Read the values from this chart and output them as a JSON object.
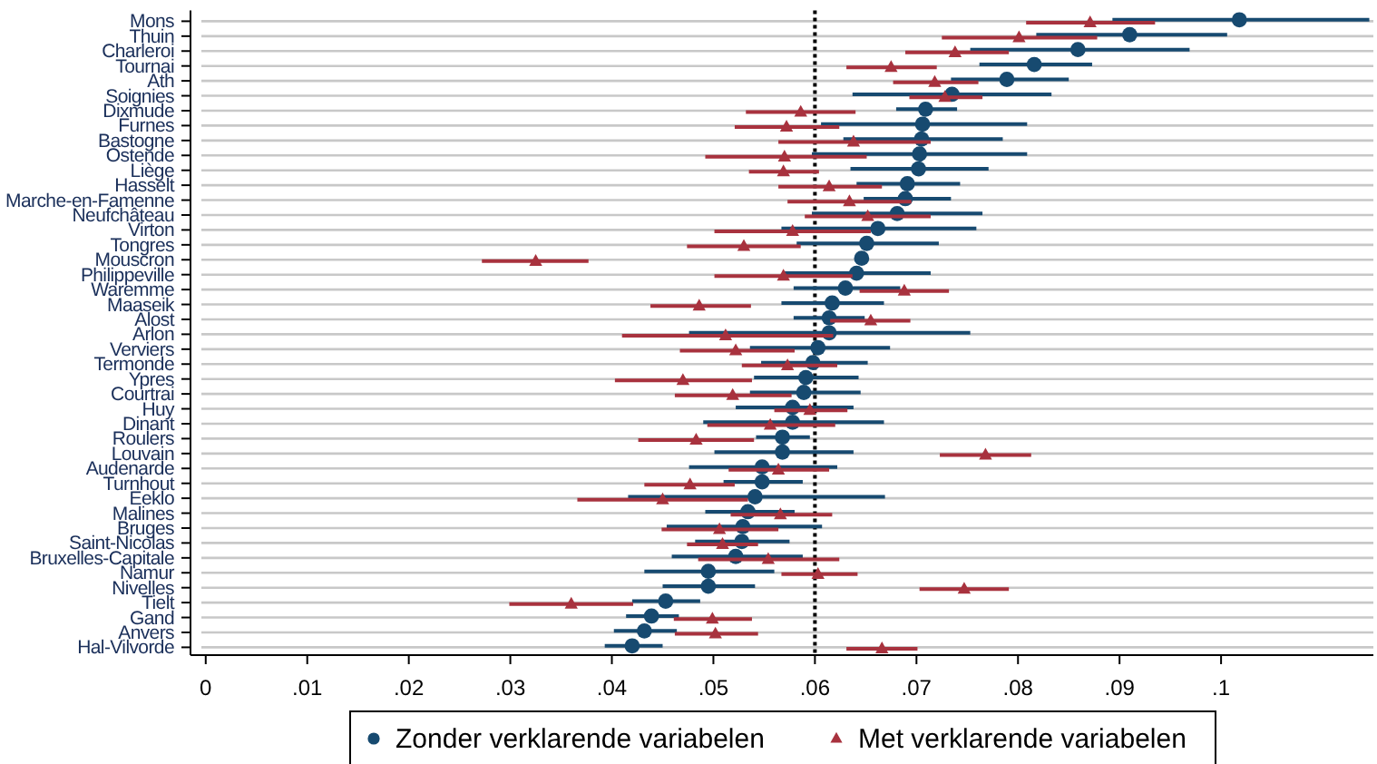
{
  "chart_data": {
    "type": "scatter",
    "orientation": "horizontal",
    "categories": [
      "Mons",
      "Thuin",
      "Charleroi",
      "Tournai",
      "Ath",
      "Soignies",
      "Dixmude",
      "Furnes",
      "Bastogne",
      "Ostende",
      "Liège",
      "Hasselt",
      "Marche-en-Famenne",
      "Neufchâteau",
      "Virton",
      "Tongres",
      "Mouscron",
      "Philippeville",
      "Waremme",
      "Maaseik",
      "Alost",
      "Arlon",
      "Verviers",
      "Termonde",
      "Ypres",
      "Courtrai",
      "Huy",
      "Dinant",
      "Roulers",
      "Louvain",
      "Audenarde",
      "Turnhout",
      "Eeklo",
      "Malines",
      "Bruges",
      "Saint-Nicolas",
      "Bruxelles-Capitale",
      "Namur",
      "Nivelles",
      "Tielt",
      "Gand",
      "Anvers",
      "Hal-Vilvorde"
    ],
    "series": [
      {
        "name": "Zonder verklarende variabelen",
        "color": "#174a70",
        "marker": "circle",
        "values": [
          0.1018,
          0.091,
          0.0859,
          0.0816,
          0.0789,
          0.0735,
          0.0709,
          0.0706,
          0.0705,
          0.0703,
          0.0702,
          0.0691,
          0.0689,
          0.0681,
          0.0662,
          0.0651,
          0.0646,
          0.0641,
          0.063,
          0.0617,
          0.0614,
          0.0614,
          0.0603,
          0.0598,
          0.0591,
          0.0589,
          0.0578,
          0.0578,
          0.0568,
          0.0568,
          0.0548,
          0.0548,
          0.0541,
          0.0534,
          0.0529,
          0.0528,
          0.0522,
          0.0495,
          0.0495,
          0.0453,
          0.0439,
          0.0432,
          0.042
        ],
        "errors": [
          [
            0.0893,
            0.1146
          ],
          [
            0.0818,
            0.1006
          ],
          [
            0.0753,
            0.0969
          ],
          [
            0.0762,
            0.0873
          ],
          [
            0.0734,
            0.085
          ],
          [
            0.0637,
            0.0833
          ],
          [
            0.068,
            0.074
          ],
          [
            0.0606,
            0.0809
          ],
          [
            0.0628,
            0.0785
          ],
          [
            0.0597,
            0.0809
          ],
          [
            0.0635,
            0.0771
          ],
          [
            0.0641,
            0.0743
          ],
          [
            0.0648,
            0.0734
          ],
          [
            0.0597,
            0.0765
          ],
          [
            0.0567,
            0.0759
          ],
          [
            0.0582,
            0.0722
          ],
          null,
          [
            0.057,
            0.0714
          ],
          [
            0.0579,
            0.0684
          ],
          [
            0.0567,
            0.0668
          ],
          [
            0.0579,
            0.0649
          ],
          [
            0.0476,
            0.0753
          ],
          [
            0.0536,
            0.0674
          ],
          [
            0.0547,
            0.0652
          ],
          [
            0.054,
            0.0643
          ],
          [
            0.0536,
            0.0645
          ],
          [
            0.0522,
            0.0638
          ],
          [
            0.049,
            0.0668
          ],
          [
            0.0542,
            0.0595
          ],
          [
            0.0501,
            0.0638
          ],
          [
            0.0476,
            0.0622
          ],
          [
            0.051,
            0.0588
          ],
          [
            0.0416,
            0.0669
          ],
          [
            0.0492,
            0.058
          ],
          [
            0.0454,
            0.0607
          ],
          [
            0.0482,
            0.0575
          ],
          [
            0.0459,
            0.0588
          ],
          [
            0.0432,
            0.056
          ],
          [
            0.045,
            0.0541
          ],
          [
            0.042,
            0.0487
          ],
          [
            0.0414,
            0.0466
          ],
          [
            0.0402,
            0.0464
          ],
          [
            0.0393,
            0.045
          ]
        ]
      },
      {
        "name": "Met verklarende variabelen",
        "color": "#a8323e",
        "marker": "triangle",
        "values": [
          0.0871,
          0.0801,
          0.0738,
          0.0675,
          0.0718,
          0.0728,
          0.0586,
          0.0572,
          0.0638,
          0.057,
          0.0569,
          0.0614,
          0.0634,
          0.0652,
          0.0578,
          0.053,
          0.0325,
          0.0569,
          0.0688,
          0.0486,
          0.0655,
          0.0512,
          0.0522,
          0.0573,
          0.047,
          0.0519,
          0.0595,
          0.0556,
          0.0483,
          0.0768,
          0.0564,
          0.0477,
          0.045,
          0.0566,
          0.0506,
          0.0509,
          0.0554,
          0.0603,
          0.0747,
          0.036,
          0.0499,
          0.0502,
          0.0666
        ],
        "errors": [
          [
            0.0808,
            0.0935
          ],
          [
            0.0725,
            0.0878
          ],
          [
            0.0689,
            0.0791
          ],
          [
            0.0631,
            0.072
          ],
          [
            0.0677,
            0.0761
          ],
          [
            0.0693,
            0.0765
          ],
          [
            0.0532,
            0.064
          ],
          [
            0.0521,
            0.0624
          ],
          [
            0.0564,
            0.0714
          ],
          [
            0.0492,
            0.0651
          ],
          [
            0.0535,
            0.0604
          ],
          [
            0.0564,
            0.0666
          ],
          [
            0.0573,
            0.0695
          ],
          [
            0.059,
            0.0714
          ],
          [
            0.0501,
            0.0655
          ],
          [
            0.0474,
            0.0586
          ],
          [
            0.0272,
            0.0377
          ],
          [
            0.0501,
            0.0637
          ],
          [
            0.0644,
            0.0732
          ],
          [
            0.0438,
            0.0537
          ],
          [
            0.0615,
            0.0694
          ],
          [
            0.041,
            0.0618
          ],
          [
            0.0467,
            0.058
          ],
          [
            0.0528,
            0.0622
          ],
          [
            0.0403,
            0.0538
          ],
          [
            0.0462,
            0.0577
          ],
          [
            0.056,
            0.0632
          ],
          [
            0.0494,
            0.062
          ],
          [
            0.0426,
            0.054
          ],
          [
            0.0723,
            0.0813
          ],
          [
            0.0515,
            0.0614
          ],
          [
            0.0432,
            0.0521
          ],
          [
            0.0366,
            0.0534
          ],
          [
            0.0517,
            0.0617
          ],
          [
            0.0449,
            0.0564
          ],
          [
            0.0474,
            0.0544
          ],
          [
            0.0485,
            0.0624
          ],
          [
            0.0567,
            0.0642
          ],
          [
            0.0703,
            0.0791
          ],
          [
            0.0299,
            0.0421
          ],
          [
            0.0461,
            0.0538
          ],
          [
            0.0462,
            0.0544
          ],
          [
            0.0631,
            0.0701
          ]
        ]
      }
    ],
    "xlim": [
      -0.0015,
      0.115
    ],
    "xticks": [
      {
        "value": 0,
        "label": "0"
      },
      {
        "value": 0.01,
        "label": ".01"
      },
      {
        "value": 0.02,
        "label": ".02"
      },
      {
        "value": 0.03,
        "label": ".03"
      },
      {
        "value": 0.04,
        "label": ".04"
      },
      {
        "value": 0.05,
        "label": ".05"
      },
      {
        "value": 0.06,
        "label": ".06"
      },
      {
        "value": 0.07,
        "label": ".07"
      },
      {
        "value": 0.08,
        "label": ".08"
      },
      {
        "value": 0.09,
        "label": ".09"
      },
      {
        "value": 0.1,
        "label": ".1"
      }
    ],
    "ref_lines": [
      {
        "axis": "x",
        "value": 0.06,
        "color": "#000000",
        "line_style": "dotted"
      }
    ],
    "grid": "y",
    "legend": "bottom"
  }
}
